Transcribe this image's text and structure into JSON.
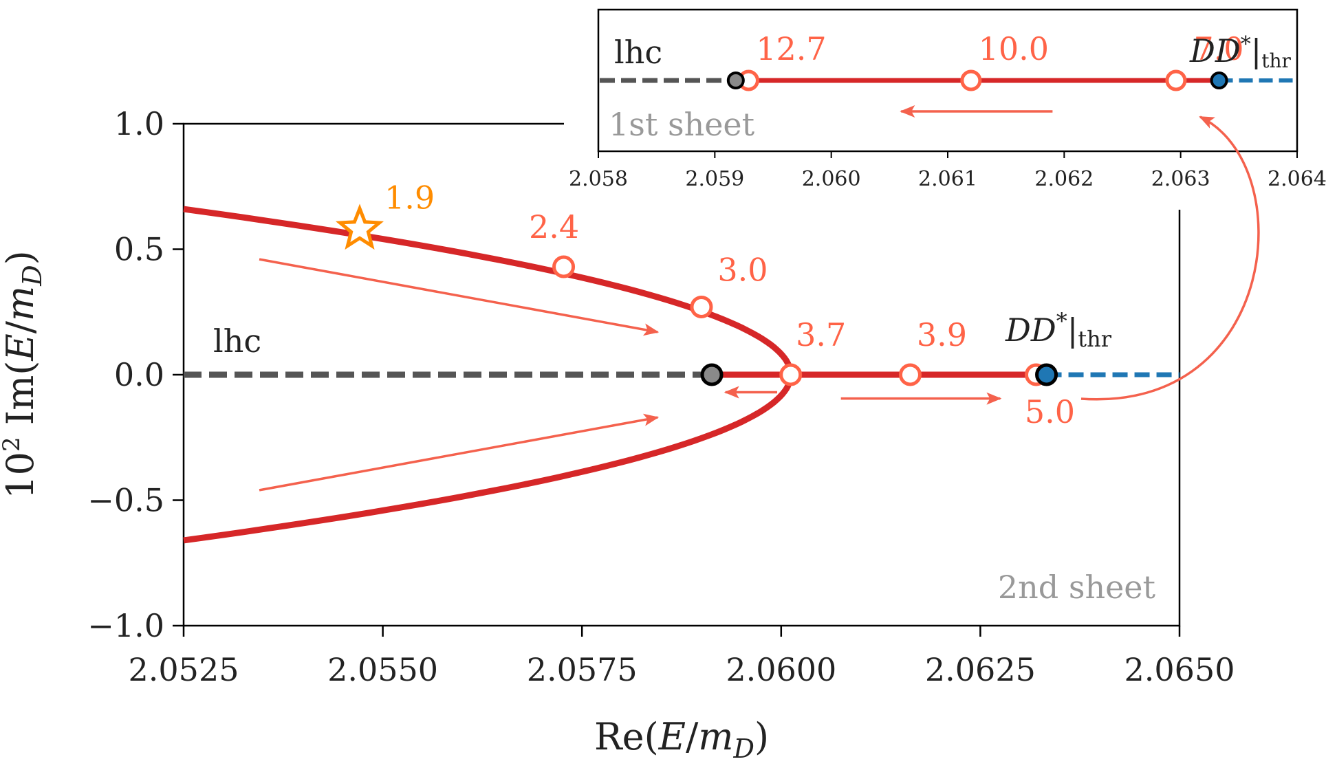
{
  "colors": {
    "trajectory": "#d62728",
    "marker_outline": "#ff6347",
    "arrow": "#f4614d",
    "star": "#ff8c00",
    "lhc": "#555555",
    "threshold": "#1f77b4",
    "sheet_label": "#999999",
    "grey_point": "#8a8a8a"
  },
  "chart_data": [
    {
      "type": "line",
      "title": "",
      "sheet_label": "2nd sheet",
      "xlabel": "Re(E/m_D)",
      "ylabel": "10^2 Im(E/m_D)",
      "xlim": [
        2.0525,
        2.065
      ],
      "ylim": [
        -1.0,
        1.0
      ],
      "xticks": [
        2.0525,
        2.055,
        2.0575,
        2.06,
        2.0625,
        2.065
      ],
      "xtick_labels": [
        "2.0525",
        "2.0550",
        "2.0575",
        "2.0600",
        "2.0625",
        "2.0650"
      ],
      "yticks": [
        1.0,
        0.5,
        0.0,
        -0.5,
        -1.0
      ],
      "ytick_labels": [
        "1.0",
        "0.5",
        "0.0",
        "−0.5",
        "−1.0"
      ],
      "branch_point": {
        "x": 2.06012,
        "y": 0.0
      },
      "branch_curve_endpoint": {
        "x": 2.0525,
        "y": 0.66
      },
      "real_segment": {
        "x_start": 2.05913,
        "x_end": 2.06333
      },
      "lhc": {
        "label": "lhc",
        "x_start": 2.0525,
        "x_end": 2.05913
      },
      "threshold_cut": {
        "x_start": 2.06333,
        "x_end": 2.065
      },
      "lhc_endpoint": {
        "x": 2.05913,
        "y": 0.0
      },
      "threshold_point": {
        "label_main": "DD",
        "label_sup": "*",
        "label_sub": "thr",
        "x": 2.06333,
        "y": 0.0
      },
      "star_point": {
        "label": "1.9",
        "x": 2.05471,
        "y": 0.58
      },
      "markers": [
        {
          "label": "2.4",
          "x": 2.05727,
          "y": 0.43
        },
        {
          "label": "3.0",
          "x": 2.059,
          "y": 0.27
        },
        {
          "label": "3.7",
          "x": 2.06012,
          "y": 0.0
        },
        {
          "label": "3.9",
          "x": 2.06162,
          "y": 0.0
        },
        {
          "label": "5.0",
          "x": 2.0632,
          "y": 0.0
        }
      ],
      "arrows": [
        {
          "from": [
            2.05345,
            0.46
          ],
          "to": [
            2.05845,
            0.17
          ]
        },
        {
          "from": [
            2.05345,
            -0.46
          ],
          "to": [
            2.05845,
            -0.17
          ]
        },
        {
          "from": [
            2.05995,
            -0.07
          ],
          "to": [
            2.0593,
            -0.07
          ]
        },
        {
          "from": [
            2.06075,
            -0.095
          ],
          "to": [
            2.06275,
            -0.095
          ]
        }
      ]
    },
    {
      "type": "line",
      "title": "inset",
      "sheet_label": "1st sheet",
      "xlim": [
        2.058,
        2.064
      ],
      "xticks": [
        2.058,
        2.059,
        2.06,
        2.061,
        2.062,
        2.063,
        2.064
      ],
      "xtick_labels": [
        "2.058",
        "2.059",
        "2.060",
        "2.061",
        "2.062",
        "2.063",
        "2.064"
      ],
      "lhc": {
        "label": "lhc",
        "x_start": 2.058,
        "x_end": 2.05918
      },
      "real_segment": {
        "x_start": 2.05918,
        "x_end": 2.06333
      },
      "threshold_cut": {
        "x_start": 2.06333,
        "x_end": 2.064
      },
      "lhc_endpoint": {
        "x": 2.05918
      },
      "threshold_point": {
        "label_main": "DD",
        "label_sup": "*",
        "label_sub": "thr",
        "x": 2.06333
      },
      "markers": [
        {
          "label": "12.7",
          "x": 2.05929
        },
        {
          "label": "10.0",
          "x": 2.0612
        },
        {
          "label": "7.0",
          "x": 2.06296
        }
      ],
      "arrows": [
        {
          "from": [
            2.0619
          ],
          "to": [
            2.0606
          ]
        }
      ]
    }
  ]
}
